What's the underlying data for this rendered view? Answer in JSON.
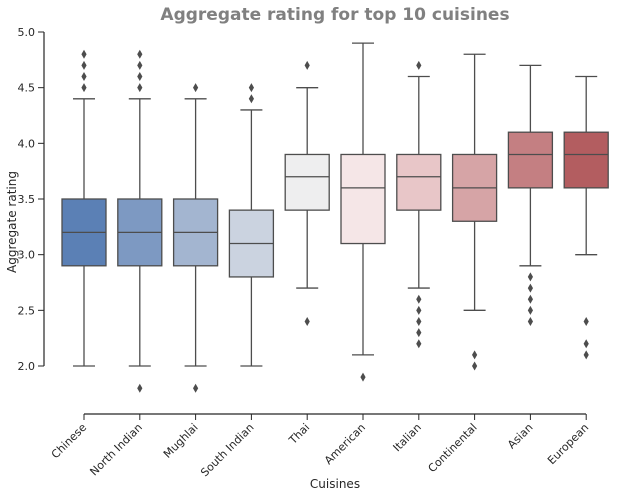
{
  "chart_data": {
    "type": "box",
    "title": "Aggregate rating for top 10 cuisines",
    "xlabel": "Cuisines",
    "ylabel": "Aggregate rating",
    "ylim": [
      1.55,
      5.0
    ],
    "yticks": [
      2.0,
      2.5,
      3.0,
      3.5,
      4.0,
      4.5,
      5.0
    ],
    "categories": [
      "Chinese",
      "North Indian",
      "Mughlai",
      "South Indian",
      "Thai",
      "American",
      "Italian",
      "Continental",
      "Asian",
      "European"
    ],
    "colors": [
      "#5b80b5",
      "#7d99c2",
      "#a3b5d0",
      "#cbd3e0",
      "#eeeeef",
      "#f5e6e7",
      "#e8c6c8",
      "#d6a4a6",
      "#c47f82",
      "#b35d60"
    ],
    "boxes": [
      {
        "whislo": 2.0,
        "q1": 2.9,
        "med": 3.2,
        "q3": 3.5,
        "whishi": 4.4,
        "fliers": [
          4.5,
          4.6,
          4.7,
          4.8
        ]
      },
      {
        "whislo": 2.0,
        "q1": 2.9,
        "med": 3.2,
        "q3": 3.5,
        "whishi": 4.4,
        "fliers": [
          1.8,
          4.5,
          4.6,
          4.7,
          4.8
        ]
      },
      {
        "whislo": 2.0,
        "q1": 2.9,
        "med": 3.2,
        "q3": 3.5,
        "whishi": 4.4,
        "fliers": [
          1.8,
          4.5
        ]
      },
      {
        "whislo": 2.0,
        "q1": 2.8,
        "med": 3.1,
        "q3": 3.4,
        "whishi": 4.3,
        "fliers": [
          4.4,
          4.5
        ]
      },
      {
        "whislo": 2.7,
        "q1": 3.4,
        "med": 3.7,
        "q3": 3.9,
        "whishi": 4.5,
        "fliers": [
          2.4,
          4.7
        ]
      },
      {
        "whislo": 2.1,
        "q1": 3.1,
        "med": 3.6,
        "q3": 3.9,
        "whishi": 4.9,
        "fliers": [
          1.9
        ]
      },
      {
        "whislo": 2.7,
        "q1": 3.4,
        "med": 3.7,
        "q3": 3.9,
        "whishi": 4.6,
        "fliers": [
          2.2,
          2.3,
          2.4,
          2.5,
          2.6,
          4.7
        ]
      },
      {
        "whislo": 2.5,
        "q1": 3.3,
        "med": 3.6,
        "q3": 3.9,
        "whishi": 4.8,
        "fliers": [
          2.0,
          2.1
        ]
      },
      {
        "whislo": 2.9,
        "q1": 3.6,
        "med": 3.9,
        "q3": 4.1,
        "whishi": 4.7,
        "fliers": [
          2.4,
          2.5,
          2.6,
          2.7,
          2.8
        ]
      },
      {
        "whislo": 3.0,
        "q1": 3.6,
        "med": 3.9,
        "q3": 4.1,
        "whishi": 4.6,
        "fliers": [
          2.1,
          2.2,
          2.4
        ]
      }
    ]
  }
}
